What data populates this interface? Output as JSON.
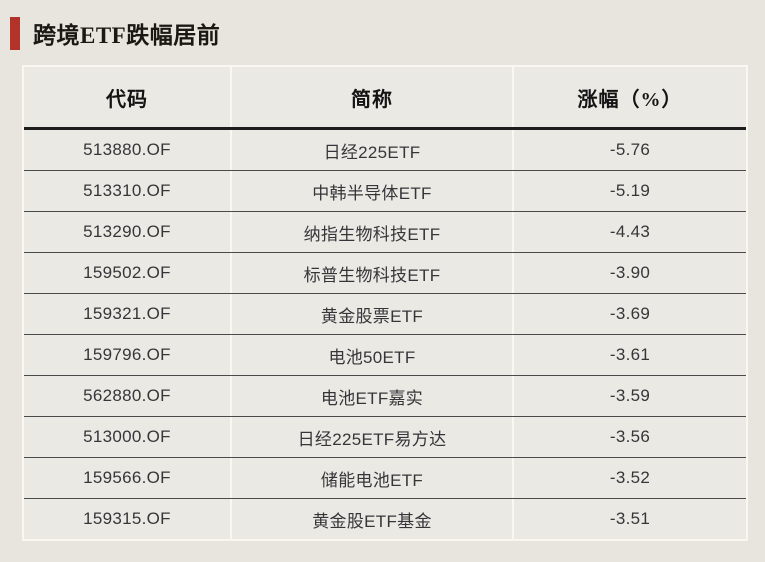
{
  "page": {
    "title": "跨境ETF跌幅居前",
    "accent_color": "#b2332a",
    "background_color": "#e8e5df"
  },
  "chart_data": {
    "type": "table",
    "title": "跨境ETF跌幅居前",
    "columns": [
      "代码",
      "简称",
      "涨幅（%）"
    ],
    "rows": [
      [
        "513880.OF",
        "日经225ETF",
        "-5.76"
      ],
      [
        "513310.OF",
        "中韩半导体ETF",
        "-5.19"
      ],
      [
        "513290.OF",
        "纳指生物科技ETF",
        "-4.43"
      ],
      [
        "159502.OF",
        "标普生物科技ETF",
        "-3.90"
      ],
      [
        "159321.OF",
        "黄金股票ETF",
        "-3.69"
      ],
      [
        "159796.OF",
        "电池50ETF",
        "-3.61"
      ],
      [
        "562880.OF",
        "电池ETF嘉实",
        "-3.59"
      ],
      [
        "513000.OF",
        "日经225ETF易方达",
        "-3.56"
      ],
      [
        "159566.OF",
        "储能电池ETF",
        "-3.52"
      ],
      [
        "159315.OF",
        "黄金股ETF基金",
        "-3.51"
      ]
    ]
  }
}
